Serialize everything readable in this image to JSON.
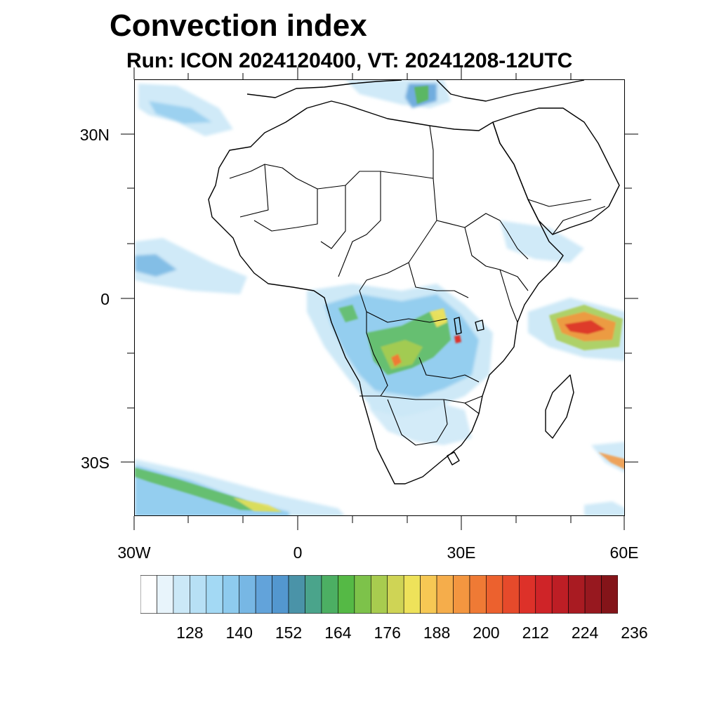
{
  "title": "Convection index",
  "subtitle": "Run: ICON 2024120400,  VT: 20241208-12UTC",
  "map": {
    "lon_range": [
      -30,
      60
    ],
    "lat_range": [
      -40,
      40
    ],
    "lat_ticks": [
      {
        "value": 30,
        "label": "30N"
      },
      {
        "value": 0,
        "label": "0"
      },
      {
        "value": -30,
        "label": "30S"
      }
    ],
    "lon_ticks": [
      {
        "value": -30,
        "label": "30W"
      },
      {
        "value": 0,
        "label": "0"
      },
      {
        "value": 30,
        "label": "30E"
      },
      {
        "value": 60,
        "label": "60E"
      }
    ]
  },
  "colorbar": {
    "labels": [
      "128",
      "140",
      "152",
      "164",
      "176",
      "188",
      "200",
      "212",
      "224",
      "236"
    ],
    "colors": [
      "#ffffff",
      "#e8f4fb",
      "#cbe8f7",
      "#b7e0f5",
      "#a3d9f4",
      "#8ecbee",
      "#77b7e4",
      "#62a3da",
      "#5397cf",
      "#4a93a8",
      "#4aa48b",
      "#4caf63",
      "#55b945",
      "#7dc24a",
      "#a8cc4f",
      "#cfd455",
      "#eee25a",
      "#f6c854",
      "#f5ad4b",
      "#f39640",
      "#ef7a35",
      "#ec612e",
      "#e64a2b",
      "#dd3129",
      "#cf2428",
      "#bd1e25",
      "#a91b22",
      "#97181f",
      "#841419"
    ]
  },
  "legend_colors": {
    "ocean_blue_low": "#cbe8f7",
    "mid_blue": "#77b7e4",
    "green": "#55b945",
    "yellow": "#eee25a",
    "orange": "#f39640",
    "red": "#dd3129"
  }
}
